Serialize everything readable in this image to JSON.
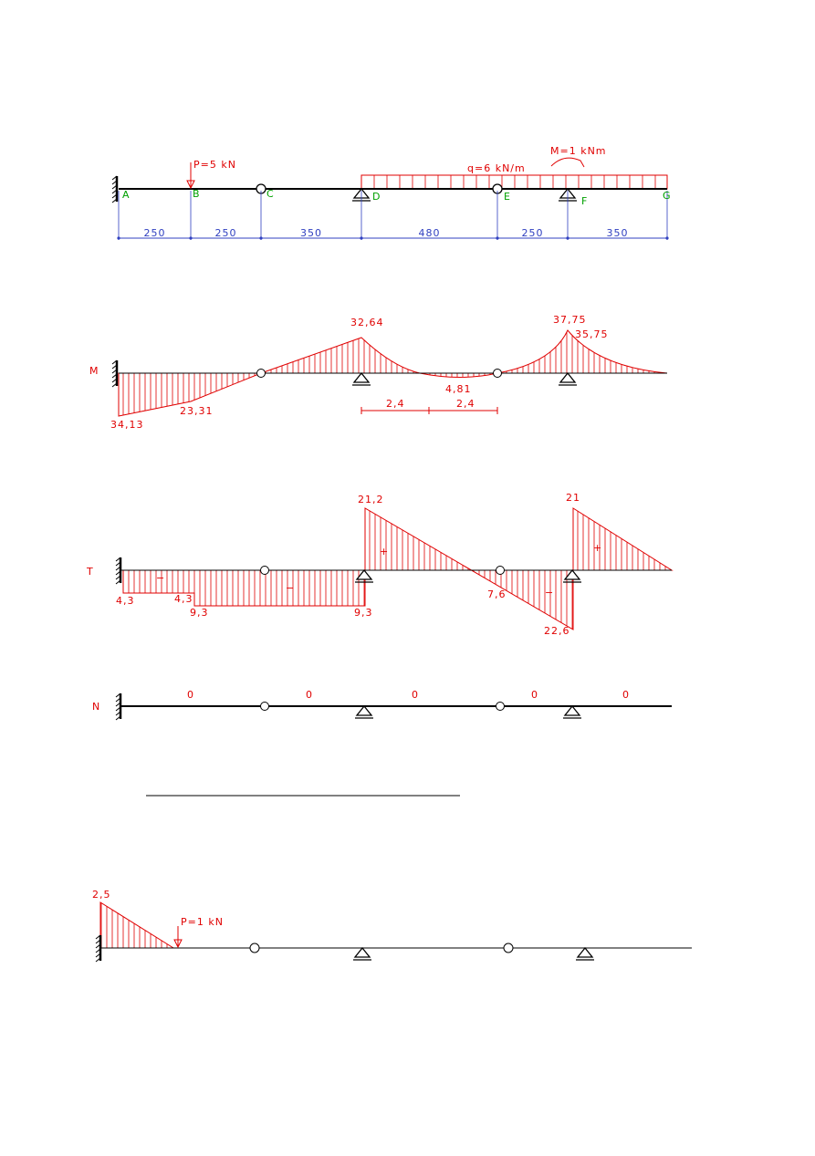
{
  "beam": {
    "load_p": "P=5 kN",
    "load_q": "q=6 kN/m",
    "moment": "M=1 kNm",
    "nodes": [
      "A",
      "B",
      "C",
      "D",
      "E",
      "F",
      "G"
    ],
    "spans": [
      "250",
      "250",
      "350",
      "480",
      "250",
      "350"
    ]
  },
  "moment_diagram": {
    "label": "M",
    "values": [
      "34,13",
      "23,31",
      "32,64",
      "4,81",
      "37,75",
      "35,75"
    ],
    "dimensions": [
      "2,4",
      "2,4"
    ]
  },
  "shear_diagram": {
    "label": "T",
    "values": [
      "4,3",
      "4,3",
      "9,3",
      "9,3",
      "21,2",
      "7,6",
      "22,6",
      "21"
    ],
    "signs": [
      "−",
      "−",
      "+",
      "−",
      "+"
    ]
  },
  "normal_diagram": {
    "label": "N",
    "values": [
      "0",
      "0",
      "0",
      "0",
      "0"
    ]
  },
  "influence_diagram": {
    "value": "2,5",
    "load": "P=1 kN"
  }
}
